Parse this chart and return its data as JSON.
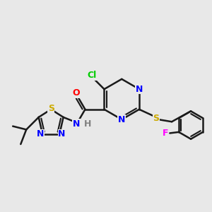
{
  "bg_color": "#e8e8e8",
  "bond_color": "#1a1a1a",
  "bond_width": 1.8,
  "colors": {
    "N": "#0000ff",
    "O": "#ff0000",
    "S": "#ccaa00",
    "Cl": "#00cc00",
    "F": "#ff00ff",
    "H": "#808080",
    "C": "#1a1a1a"
  },
  "font_size": 9
}
